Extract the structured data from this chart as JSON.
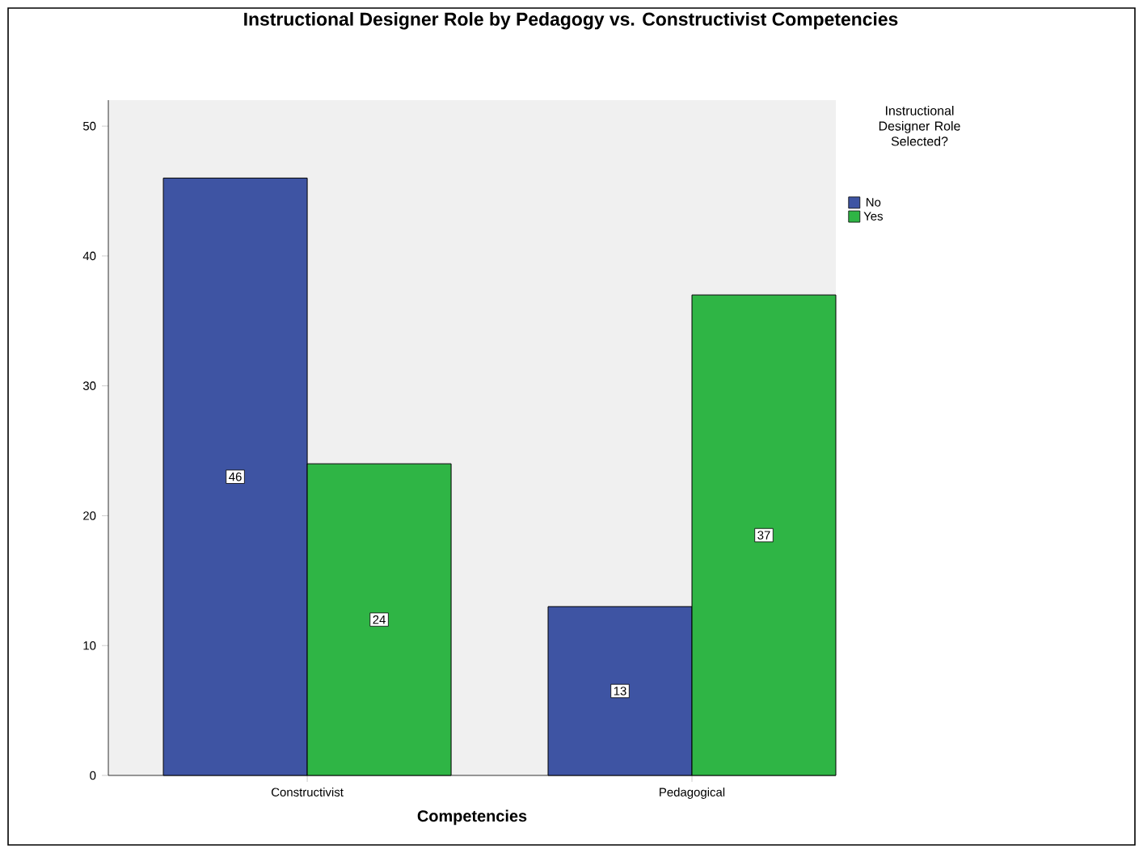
{
  "chart_data": {
    "type": "bar",
    "title": "Instructional Designer Role by Pedagogy vs. Constructivist Competencies",
    "xlabel": "Competencies",
    "legend_title": "Instructional Designer Role Selected?",
    "categories": [
      "Constructivist",
      "Pedagogical"
    ],
    "series": [
      {
        "name": "No",
        "color": "#3e54a3",
        "values": [
          46,
          13
        ]
      },
      {
        "name": "Yes",
        "color": "#2fb545",
        "values": [
          24,
          37
        ]
      }
    ],
    "ylim": [
      0,
      52
    ],
    "yticks": [
      0,
      10,
      20,
      30,
      40,
      50
    ],
    "data_labels": true,
    "legend": "top right",
    "grid": false
  }
}
